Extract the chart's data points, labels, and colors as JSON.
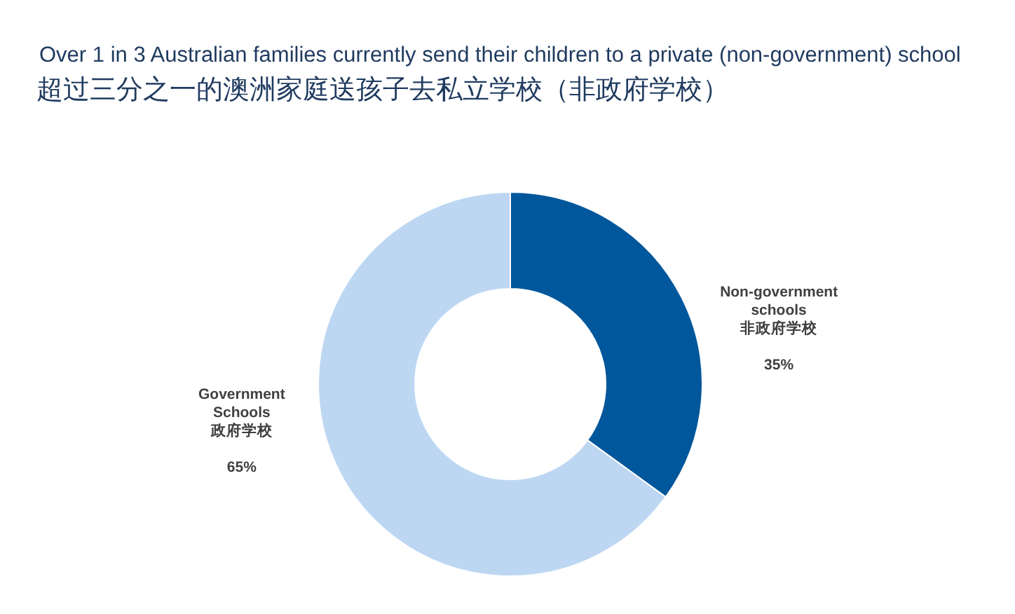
{
  "chart_data": {
    "type": "donut",
    "title": "Over 1 in 3 Australian families currently send their children to a private (non-government) school",
    "subtitle": "超过三分之一的澳洲家庭送孩子去私立学校（非政府学校）",
    "categories": [
      "Non-government schools 非政府学校",
      "Government Schools 政府学校"
    ],
    "values": [
      35,
      65
    ],
    "colors": [
      "#01579b",
      "#bdd7f3"
    ],
    "value_labels": [
      "35%",
      "65%"
    ]
  }
}
